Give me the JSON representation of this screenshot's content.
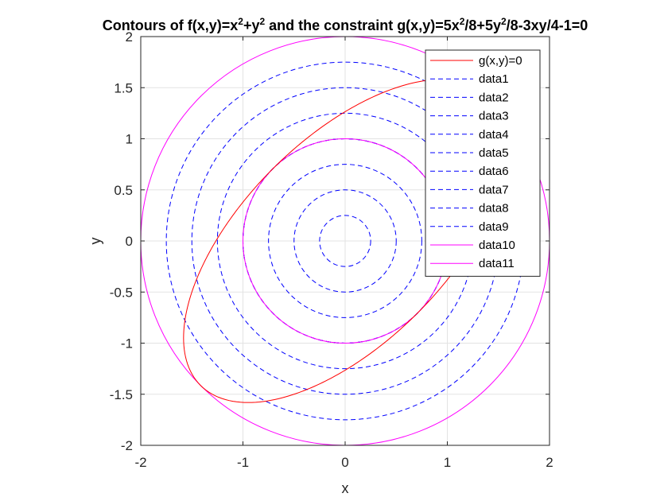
{
  "chart_data": {
    "type": "line",
    "title_parts": [
      {
        "text": "Contours of f(x,y)=x",
        "sup": false
      },
      {
        "text": "2",
        "sup": true
      },
      {
        "text": "+y",
        "sup": false
      },
      {
        "text": "2",
        "sup": true
      },
      {
        "text": " and the constraint g(x,y)=5x",
        "sup": false
      },
      {
        "text": "2",
        "sup": true
      },
      {
        "text": "/8+5y",
        "sup": false
      },
      {
        "text": "2",
        "sup": true
      },
      {
        "text": "/8-3xy/4-1=0",
        "sup": false
      }
    ],
    "xlabel": "x",
    "ylabel": "y",
    "xlim": [
      -2,
      2
    ],
    "ylim": [
      -2,
      2
    ],
    "xticks": [
      -2,
      -1,
      0,
      1,
      2
    ],
    "yticks": [
      -2,
      -1.5,
      -1,
      -0.5,
      0,
      0.5,
      1,
      1.5,
      2
    ],
    "xtick_labels": [
      "-2",
      "-1",
      "0",
      "1",
      "2"
    ],
    "ytick_labels": [
      "-2",
      "-1.5",
      "-1",
      "-0.5",
      "0",
      "0.5",
      "1",
      "1.5",
      "2"
    ],
    "grid": true,
    "legend_position": "top-right",
    "constraint": {
      "name": "g(x,y)=0",
      "color": "#ff0000",
      "style": "solid",
      "equation": {
        "a": 0.625,
        "b": 0.625,
        "c": -0.75,
        "d": -1
      }
    },
    "contours": [
      {
        "name": "data1",
        "radius": 0.25,
        "color": "#0000ff",
        "style": "dashed"
      },
      {
        "name": "data2",
        "radius": 0.5,
        "color": "#0000ff",
        "style": "dashed"
      },
      {
        "name": "data3",
        "radius": 0.75,
        "color": "#0000ff",
        "style": "dashed"
      },
      {
        "name": "data4",
        "radius": 1.0,
        "color": "#0000ff",
        "style": "dashed"
      },
      {
        "name": "data5",
        "radius": 1.25,
        "color": "#0000ff",
        "style": "dashed"
      },
      {
        "name": "data6",
        "radius": 1.5,
        "color": "#0000ff",
        "style": "dashed"
      },
      {
        "name": "data7",
        "radius": 1.75,
        "color": "#0000ff",
        "style": "dashed"
      },
      {
        "name": "data8",
        "radius": 1.0,
        "color": "#0000ff",
        "style": "dashed"
      },
      {
        "name": "data9",
        "radius": 1.0,
        "color": "#0000ff",
        "style": "dashed"
      },
      {
        "name": "data10",
        "radius": 1.0,
        "color": "#ff00ff",
        "style": "solid"
      },
      {
        "name": "data11",
        "radius": 2.0,
        "color": "#ff00ff",
        "style": "solid"
      }
    ]
  }
}
